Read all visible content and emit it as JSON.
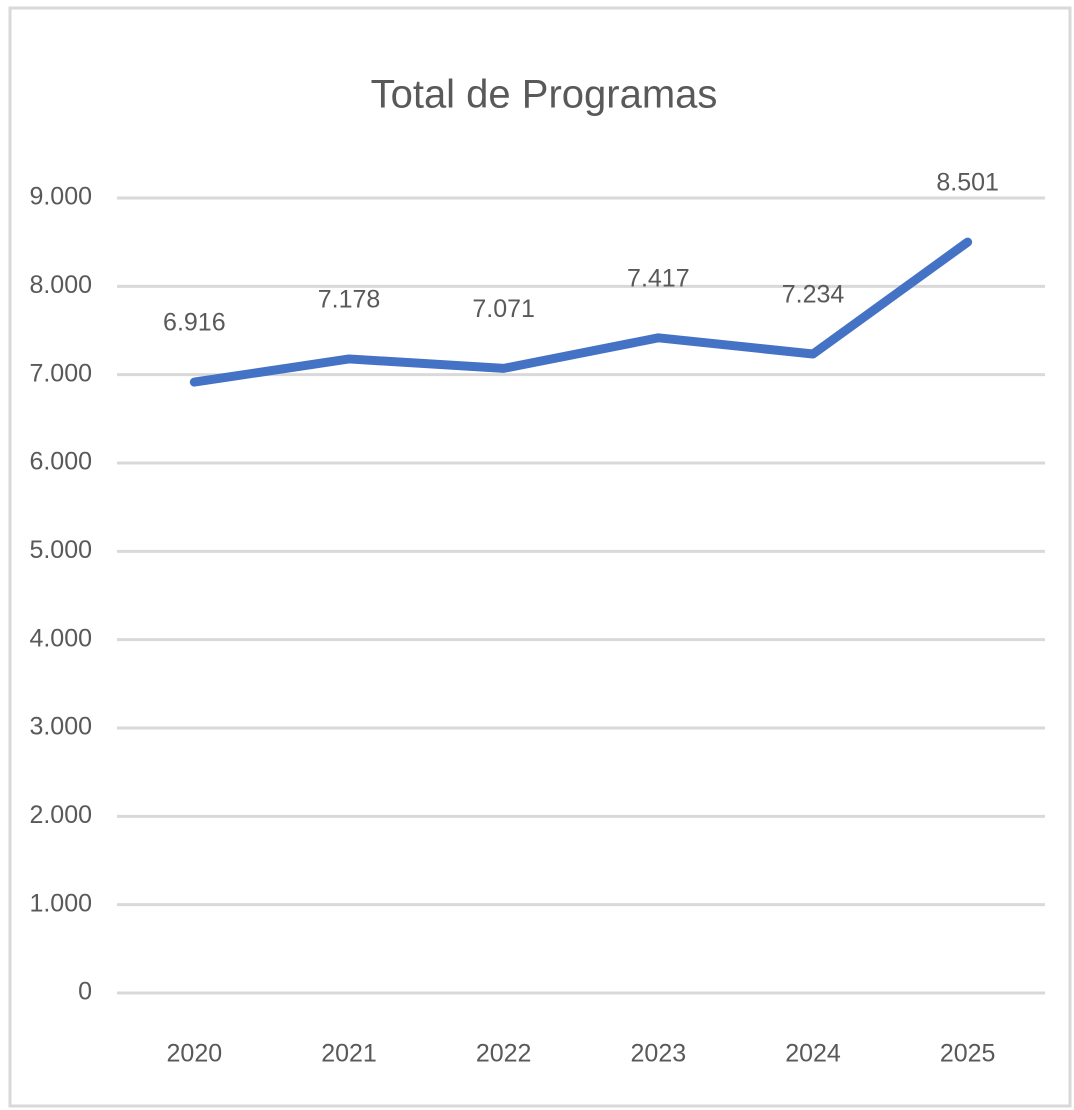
{
  "chart_data": {
    "type": "line",
    "title": "Total de Programas",
    "categories": [
      "2020",
      "2021",
      "2022",
      "2023",
      "2024",
      "2025"
    ],
    "series": [
      {
        "name": "Total de Programas",
        "color": "#4472c4",
        "values": [
          6916,
          7178,
          7071,
          7417,
          7234,
          8501
        ],
        "value_labels": [
          "6.916",
          "7.178",
          "7.071",
          "7.417",
          "7.234",
          "8.501"
        ]
      }
    ],
    "ylim": [
      0,
      9000
    ],
    "yticks": [
      0,
      {
        "value": 1000,
        "label": "1.000"
      },
      {
        "value": 2000,
        "label": "2.000"
      },
      {
        "value": 3000,
        "label": "3.000"
      },
      {
        "value": 4000,
        "label": "4.000"
      },
      {
        "value": 5000,
        "label": "5.000"
      },
      {
        "value": 6000,
        "label": "6.000"
      },
      {
        "value": 7000,
        "label": "7.000"
      },
      {
        "value": 8000,
        "label": "8.000"
      },
      {
        "value": 9000,
        "label": "9.000"
      }
    ],
    "grid": true
  }
}
